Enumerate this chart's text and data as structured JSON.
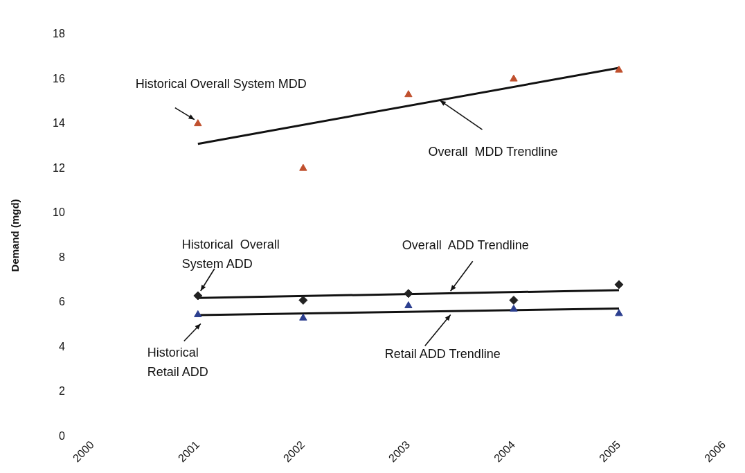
{
  "chart_data": {
    "type": "scatter",
    "ylabel": "Demand (mgd)",
    "xlim": [
      2000,
      2006
    ],
    "xticks": [
      2000,
      2001,
      2002,
      2003,
      2004,
      2005,
      2006
    ],
    "ylim": [
      0,
      18
    ],
    "yticks": [
      0,
      2,
      4,
      6,
      8,
      10,
      12,
      14,
      16,
      18
    ],
    "grid": false,
    "legend": false,
    "series": [
      {
        "type": "scatter",
        "marker": "triangle",
        "color": "#c0502e",
        "x": [
          2001,
          2002,
          2003,
          2004,
          2005
        ],
        "values": [
          14.0,
          12.0,
          15.3,
          16.0,
          16.4
        ]
      },
      {
        "type": "line",
        "marker": "none",
        "color": "#111111",
        "x": [
          2001,
          2005
        ],
        "values": [
          13.1,
          16.5
        ]
      },
      {
        "type": "scatter",
        "marker": "diamond",
        "color": "#222222",
        "x": [
          2001,
          2002,
          2003,
          2004,
          2005
        ],
        "values": [
          6.3,
          6.1,
          6.4,
          6.1,
          6.8
        ]
      },
      {
        "type": "line",
        "marker": "none",
        "color": "#111111",
        "x": [
          2001,
          2005
        ],
        "values": [
          6.2,
          6.55
        ]
      },
      {
        "type": "scatter",
        "marker": "triangle",
        "color": "#2c3f8f",
        "x": [
          2001,
          2002,
          2003,
          2004,
          2005
        ],
        "values": [
          5.45,
          5.3,
          5.85,
          5.7,
          5.5
        ]
      },
      {
        "type": "line",
        "marker": "none",
        "color": "#111111",
        "x": [
          2001,
          2005
        ],
        "values": [
          5.43,
          5.73
        ]
      }
    ],
    "annotations": [
      {
        "text": "Historical Overall System MDD",
        "x": 2001,
        "y": 14.0
      },
      {
        "text": "Overall  MDD Trendline",
        "x": 2003.3,
        "y": 15.1
      },
      {
        "text": "Historical  Overall\nSystem ADD",
        "x": 2001,
        "y": 6.3
      },
      {
        "text": "Overall  ADD Trendline",
        "x": 2003.4,
        "y": 6.45
      },
      {
        "text": "Historical\nRetail ADD",
        "x": 2001,
        "y": 5.45
      },
      {
        "text": "Retail ADD Trendline",
        "x": 2003.4,
        "y": 5.6
      }
    ]
  }
}
